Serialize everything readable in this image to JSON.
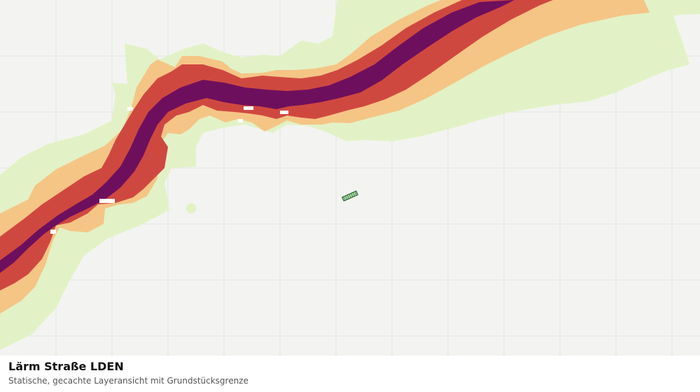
{
  "layer": {
    "title": "Lärm Straße LDEN",
    "subtitle": "Statische, gecachte Layeransicht mit Grundstücksgrenze"
  },
  "colors": {
    "background": "#f3f4f1",
    "grid": "#e2e3e0",
    "band_lowest": "#e2f2c6",
    "band_low": "#f5c586",
    "band_high": "#cf4840",
    "band_highest": "#6e0f5d",
    "parcel_fill": "#a9d6a2",
    "parcel_stroke": "#1e5a2a"
  }
}
